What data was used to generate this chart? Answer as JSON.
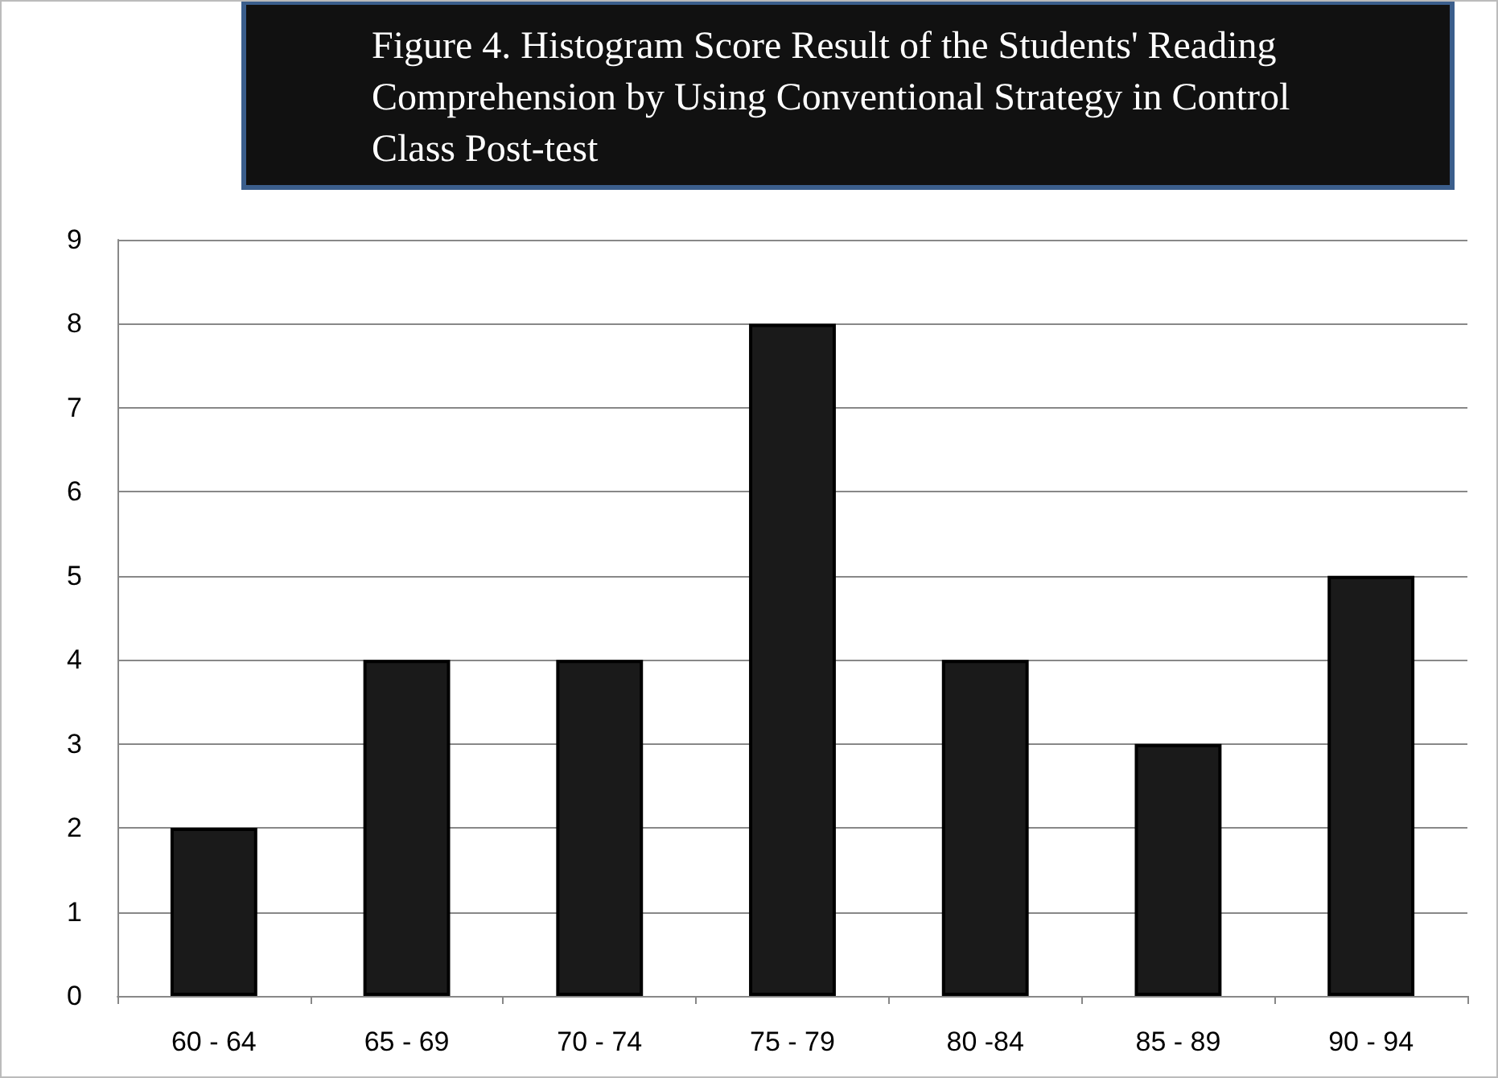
{
  "chart_data": {
    "type": "bar",
    "title": "Figure 4. Histogram Score Result of the Students' Reading Comprehension by Using Conventional Strategy in Control Class Post-test",
    "categories": [
      "60 - 64",
      "65 - 69",
      "70 - 74",
      "75 - 79",
      "80 -84",
      "85 - 89",
      "90 - 94"
    ],
    "values": [
      2,
      4,
      4,
      8,
      4,
      3,
      5
    ],
    "color": "#1a1a1a",
    "ylim": [
      0,
      9
    ],
    "yticks": [
      0,
      1,
      2,
      3,
      4,
      5,
      6,
      7,
      8,
      9
    ],
    "grid": "y"
  }
}
